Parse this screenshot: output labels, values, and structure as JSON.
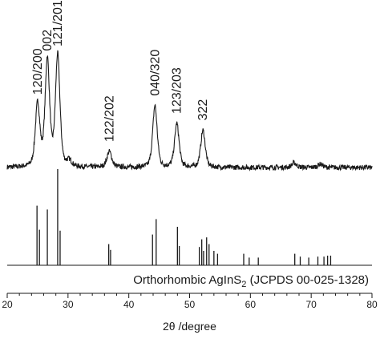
{
  "chart_data": [
    {
      "type": "line",
      "xlabel": "2θ /degree",
      "xlim": [
        20,
        80
      ],
      "xticks": [
        20,
        30,
        40,
        50,
        60,
        70,
        80
      ],
      "grid": false,
      "peaks": [
        {
          "label": "120/200",
          "x": 25.0,
          "height": 0.56
        },
        {
          "label": "002",
          "x": 26.6,
          "height": 0.95
        },
        {
          "label": "121/201",
          "x": 28.3,
          "height": 0.99
        },
        {
          "label": "122/202",
          "x": 36.8,
          "height": 0.14
        },
        {
          "label": "040/320",
          "x": 44.3,
          "height": 0.55
        },
        {
          "label": "123/203",
          "x": 47.9,
          "height": 0.39
        },
        {
          "label": "322",
          "x": 52.2,
          "height": 0.33
        }
      ],
      "minor_peaks": [
        {
          "x": 30.2,
          "height": 0.05
        },
        {
          "x": 67.2,
          "height": 0.04
        },
        {
          "x": 71.5,
          "height": 0.03
        }
      ]
    },
    {
      "type": "bar",
      "title": "Orthorhombic AgInS",
      "title_subscript": "2",
      "title_suffix": " (JCPDS 00-025-1328)",
      "xlim": [
        20,
        80
      ],
      "reference_lines": [
        {
          "x": 24.9,
          "intensity": 0.62
        },
        {
          "x": 25.3,
          "intensity": 0.37
        },
        {
          "x": 26.6,
          "intensity": 0.58
        },
        {
          "x": 28.3,
          "intensity": 1.0
        },
        {
          "x": 28.7,
          "intensity": 0.36
        },
        {
          "x": 36.7,
          "intensity": 0.22
        },
        {
          "x": 37.0,
          "intensity": 0.16
        },
        {
          "x": 43.9,
          "intensity": 0.32
        },
        {
          "x": 44.5,
          "intensity": 0.48
        },
        {
          "x": 48.0,
          "intensity": 0.4
        },
        {
          "x": 48.3,
          "intensity": 0.2
        },
        {
          "x": 51.6,
          "intensity": 0.19
        },
        {
          "x": 52.0,
          "intensity": 0.27
        },
        {
          "x": 52.3,
          "intensity": 0.15
        },
        {
          "x": 52.8,
          "intensity": 0.29
        },
        {
          "x": 53.2,
          "intensity": 0.22
        },
        {
          "x": 54.0,
          "intensity": 0.15
        },
        {
          "x": 54.6,
          "intensity": 0.12
        },
        {
          "x": 58.9,
          "intensity": 0.12
        },
        {
          "x": 59.8,
          "intensity": 0.08
        },
        {
          "x": 61.3,
          "intensity": 0.08
        },
        {
          "x": 67.3,
          "intensity": 0.12
        },
        {
          "x": 68.2,
          "intensity": 0.09
        },
        {
          "x": 69.6,
          "intensity": 0.08
        },
        {
          "x": 71.1,
          "intensity": 0.09
        },
        {
          "x": 72.1,
          "intensity": 0.09
        },
        {
          "x": 72.7,
          "intensity": 0.1
        },
        {
          "x": 73.2,
          "intensity": 0.1
        }
      ]
    }
  ]
}
